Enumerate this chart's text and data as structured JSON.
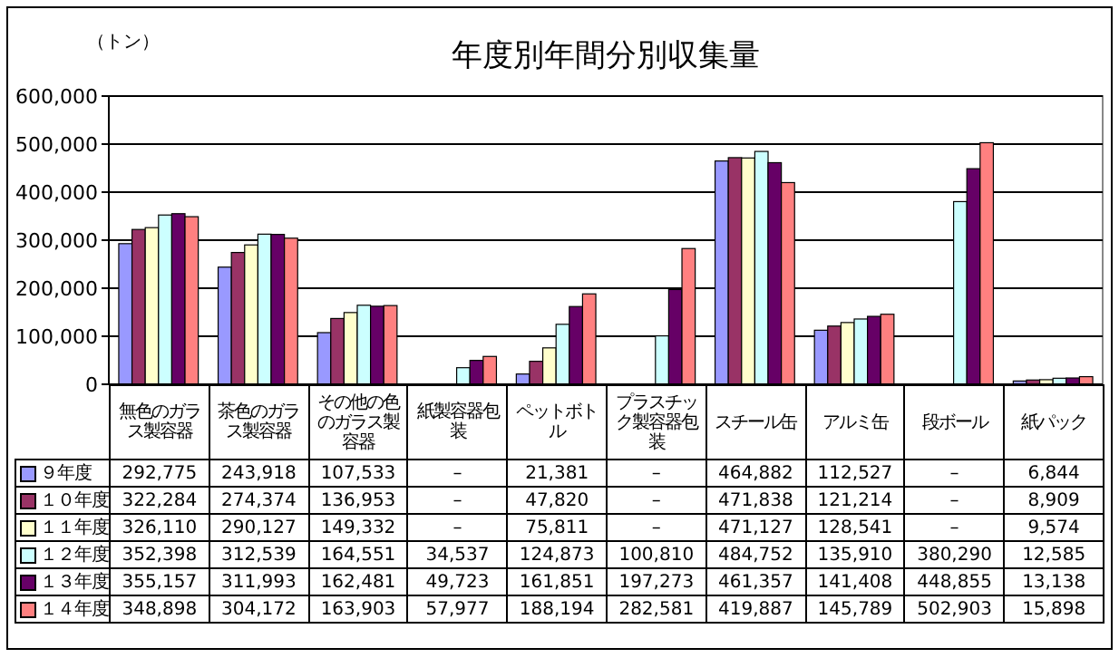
{
  "chart_data": {
    "type": "bar",
    "title": "年度別年間分別収集量",
    "ylabel": "（トン）",
    "categories": [
      "無色のガラス製容器",
      "茶色のガラス製容器",
      "その他の色のガラス製容器",
      "紙製容器包装",
      "ペットボトル",
      "プラスチック製容器包装",
      "スチール缶",
      "アルミ缶",
      "段ボール",
      "紙パック"
    ],
    "series": [
      {
        "name": "９年度",
        "color": "#9999ff",
        "values": [
          292775,
          243918,
          107533,
          null,
          21381,
          null,
          464882,
          112527,
          null,
          6844
        ],
        "value_labels": [
          "292,775",
          "243,918",
          "107,533",
          "–",
          "21,381",
          "–",
          "464,882",
          "112,527",
          "–",
          "6,844"
        ]
      },
      {
        "name": "１０年度",
        "color": "#993366",
        "values": [
          322284,
          274374,
          136953,
          null,
          47820,
          null,
          471838,
          121214,
          null,
          8909
        ],
        "value_labels": [
          "322,284",
          "274,374",
          "136,953",
          "–",
          "47,820",
          "–",
          "471,838",
          "121,214",
          "–",
          "8,909"
        ]
      },
      {
        "name": "１１年度",
        "color": "#ffffcc",
        "values": [
          326110,
          290127,
          149332,
          null,
          75811,
          null,
          471127,
          128541,
          null,
          9574
        ],
        "value_labels": [
          "326,110",
          "290,127",
          "149,332",
          "–",
          "75,811",
          "–",
          "471,127",
          "128,541",
          "–",
          "9,574"
        ]
      },
      {
        "name": "１２年度",
        "color": "#ccffff",
        "values": [
          352398,
          312539,
          164551,
          34537,
          124873,
          100810,
          484752,
          135910,
          380290,
          12585
        ],
        "value_labels": [
          "352,398",
          "312,539",
          "164,551",
          "34,537",
          "124,873",
          "100,810",
          "484,752",
          "135,910",
          "380,290",
          "12,585"
        ]
      },
      {
        "name": "１３年度",
        "color": "#660066",
        "values": [
          355157,
          311993,
          162481,
          49723,
          161851,
          197273,
          461357,
          141408,
          448855,
          13138
        ],
        "value_labels": [
          "355,157",
          "311,993",
          "162,481",
          "49,723",
          "161,851",
          "197,273",
          "461,357",
          "141,408",
          "448,855",
          "13,138"
        ]
      },
      {
        "name": "１４年度",
        "color": "#ff8080",
        "values": [
          348898,
          304172,
          163903,
          57977,
          188194,
          282581,
          419887,
          145789,
          502903,
          15898
        ],
        "value_labels": [
          "348,898",
          "304,172",
          "163,903",
          "57,977",
          "188,194",
          "282,581",
          "419,887",
          "145,789",
          "502,903",
          "15,898"
        ]
      }
    ],
    "ylim": [
      0,
      600000
    ],
    "yticks": [
      0,
      {
        "value": 100000,
        "label": "100,000"
      },
      {
        "value": 200000,
        "label": "200,000"
      },
      {
        "value": 300000,
        "label": "300,000"
      },
      {
        "value": 400000,
        "label": "400,000"
      },
      {
        "value": 500000,
        "label": "500,000"
      },
      {
        "value": 600000,
        "label": "600,000"
      }
    ],
    "grid": "y",
    "legend": "bottom"
  }
}
